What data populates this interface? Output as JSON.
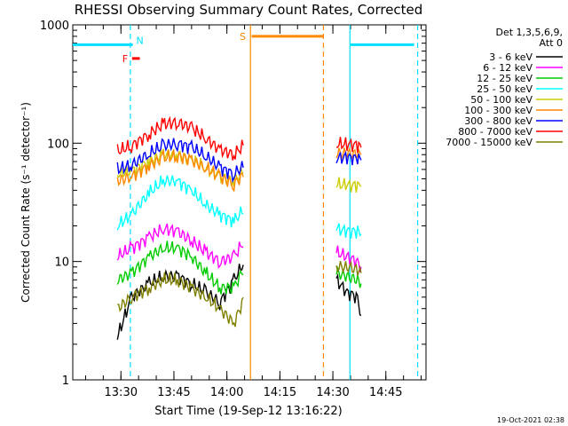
{
  "chart_data": {
    "type": "line",
    "title": "RHESSI Observing Summary Count Rates, Corrected",
    "xlabel": "Start Time (19-Sep-12 13:16:22)",
    "ylabel": "Corrected Count Rate (s⁻¹ detector⁻¹)",
    "y_scale": "log",
    "ylim": [
      1,
      1000
    ],
    "xlim": [
      "13:16:22",
      "14:56:22"
    ],
    "x_ticks": [
      "13:30",
      "13:45",
      "14:00",
      "14:15",
      "14:30",
      "14:45"
    ],
    "y_ticks": [
      "1",
      "10",
      "100",
      "1000"
    ],
    "legend_header": [
      "Det 1,3,5,6,9,",
      "Att 0"
    ],
    "legend_position": "right",
    "timestamp": "19-Oct-2021 02:38",
    "flags": [
      {
        "label": "N",
        "color": "#00e0ff",
        "segments": [
          [
            "13:16:22",
            "13:33:22"
          ],
          [
            "14:35:00",
            "14:53:00"
          ]
        ],
        "level": 680
      },
      {
        "label": "F",
        "color": "#ff0000",
        "segments": [
          [
            "13:33:10",
            "13:35:20"
          ]
        ],
        "level": 520
      },
      {
        "label": "S",
        "color": "#ff8800",
        "segments": [
          [
            "14:07:00",
            "14:27:20"
          ]
        ],
        "level": 800
      }
    ],
    "vlines": [
      {
        "time": "13:32:40",
        "color": "#00e0ff",
        "style": "dashed"
      },
      {
        "time": "14:34:50",
        "color": "#00e0ff",
        "style": "solid"
      },
      {
        "time": "14:54:00",
        "color": "#00e0ff",
        "style": "dashed"
      },
      {
        "time": "14:06:40",
        "color": "#ff8800",
        "style": "solid"
      },
      {
        "time": "14:27:20",
        "color": "#ff8800",
        "style": "dashed"
      }
    ],
    "series": [
      {
        "name": "3 - 6 keV",
        "color": "#000000",
        "x": [
          "13:29",
          "13:33",
          "13:38",
          "13:42",
          "13:46",
          "13:50",
          "13:54",
          "13:58",
          "14:02",
          "14:05",
          "14:31",
          "14:34",
          "14:37",
          "14:38"
        ],
        "values": [
          2.3,
          5,
          6.5,
          7.5,
          7.5,
          6.5,
          5.5,
          4.5,
          7,
          10,
          7,
          5.5,
          5,
          3.5
        ]
      },
      {
        "name": "6 - 12 keV",
        "color": "#ff00ff",
        "x": [
          "13:29",
          "13:33",
          "13:38",
          "13:42",
          "13:46",
          "13:50",
          "13:54",
          "13:58",
          "14:02",
          "14:05",
          "14:31",
          "14:34",
          "14:37",
          "14:38"
        ],
        "values": [
          11,
          13,
          16,
          19,
          18,
          15,
          12,
          10,
          11,
          15,
          12,
          11,
          10,
          9
        ]
      },
      {
        "name": "12 - 25 keV",
        "color": "#00cc00",
        "x": [
          "13:29",
          "13:33",
          "13:38",
          "13:42",
          "13:46",
          "13:50",
          "13:54",
          "13:58",
          "14:02",
          "14:05",
          "14:31",
          "14:34",
          "14:37",
          "14:38"
        ],
        "values": [
          7,
          8,
          11,
          13,
          13,
          11,
          8,
          6,
          6,
          9,
          8,
          7.5,
          7,
          6.5
        ]
      },
      {
        "name": "25 - 50 keV",
        "color": "#00ffff",
        "x": [
          "13:29",
          "13:33",
          "13:38",
          "13:42",
          "13:46",
          "13:50",
          "13:54",
          "13:58",
          "14:02",
          "14:05",
          "14:31",
          "14:34",
          "14:37",
          "14:38"
        ],
        "values": [
          20,
          25,
          38,
          48,
          48,
          40,
          30,
          25,
          22,
          28,
          19,
          18,
          18,
          17
        ]
      },
      {
        "name": "50 - 100 keV",
        "color": "#cccc00",
        "x": [
          "13:29",
          "13:33",
          "13:38",
          "13:42",
          "13:46",
          "13:50",
          "13:54",
          "13:58",
          "14:02",
          "14:05",
          "14:31",
          "14:34",
          "14:37",
          "14:38"
        ],
        "values": [
          55,
          58,
          70,
          80,
          80,
          72,
          62,
          52,
          48,
          60,
          45,
          44,
          44,
          43
        ]
      },
      {
        "name": "100 - 300 keV",
        "color": "#ff8800",
        "x": [
          "13:29",
          "13:33",
          "13:38",
          "13:42",
          "13:46",
          "13:50",
          "13:54",
          "13:58",
          "14:02",
          "14:05",
          "14:31",
          "14:34",
          "14:37",
          "14:38"
        ],
        "values": [
          48,
          52,
          65,
          75,
          78,
          72,
          62,
          52,
          45,
          55,
          82,
          82,
          80,
          80
        ]
      },
      {
        "name": "300 - 800 keV",
        "color": "#0000ff",
        "x": [
          "13:29",
          "13:33",
          "13:38",
          "13:42",
          "13:46",
          "13:50",
          "13:54",
          "13:58",
          "14:02",
          "14:05",
          "14:31",
          "14:34",
          "14:37",
          "14:38"
        ],
        "values": [
          60,
          65,
          82,
          95,
          100,
          92,
          78,
          62,
          55,
          65,
          75,
          76,
          74,
          72
        ]
      },
      {
        "name": "800 - 7000 keV",
        "color": "#ff0000",
        "x": [
          "13:29",
          "13:33",
          "13:38",
          "13:42",
          "13:46",
          "13:50",
          "13:54",
          "13:58",
          "14:02",
          "14:05",
          "14:31",
          "14:34",
          "14:37",
          "14:38"
        ],
        "values": [
          85,
          95,
          120,
          145,
          150,
          135,
          110,
          88,
          80,
          98,
          98,
          98,
          96,
          92
        ]
      },
      {
        "name": "7000 - 15000 keV",
        "color": "#808000",
        "x": [
          "13:29",
          "13:33",
          "13:38",
          "13:42",
          "13:46",
          "13:50",
          "13:54",
          "13:58",
          "14:02",
          "14:05",
          "14:31",
          "14:34",
          "14:37",
          "14:38"
        ],
        "values": [
          4,
          5,
          6,
          7,
          7,
          6,
          5,
          4,
          3,
          5,
          9,
          9,
          8.5,
          8
        ]
      }
    ]
  }
}
